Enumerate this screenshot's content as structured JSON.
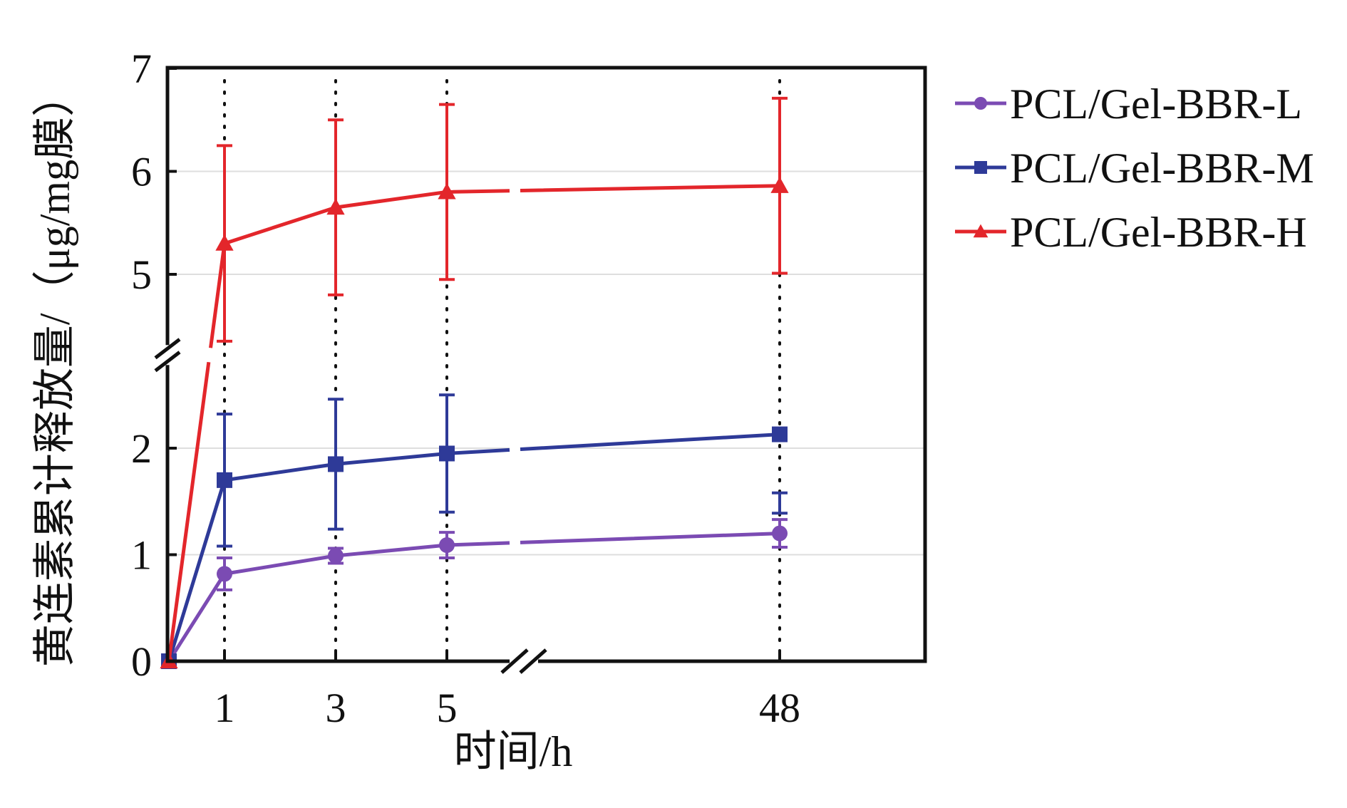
{
  "chart_data": {
    "type": "line",
    "title": "",
    "xlabel": "时间/h",
    "ylabel": "黄连素累计释放量/（μg/mg膜）",
    "x": [
      0,
      1,
      3,
      5,
      48
    ],
    "x_ticks": [
      "1",
      "3",
      "5",
      "48"
    ],
    "y_ticks": [
      "0",
      "1",
      "2",
      "5",
      "6",
      "7"
    ],
    "ylim": [
      0,
      7
    ],
    "y_axis_break": [
      2.5,
      4.5
    ],
    "x_axis_break": [
      5,
      48
    ],
    "grid": "horizontal",
    "legend_position": "right",
    "series": [
      {
        "name": "PCL/Gel-BBR-L",
        "color": "#7b4bb3",
        "marker": "circle",
        "values": [
          0,
          0.82,
          0.99,
          1.09,
          1.2
        ],
        "errors": [
          0,
          0.15,
          0.07,
          0.12,
          0.13
        ]
      },
      {
        "name": "PCL/Gel-BBR-M",
        "color": "#2e3a98",
        "marker": "square",
        "values": [
          0,
          1.7,
          1.85,
          1.95,
          2.13
        ],
        "errors": [
          0,
          0.62,
          0.61,
          0.55,
          0.55
        ]
      },
      {
        "name": "PCL/Gel-BBR-H",
        "color": "#e3262b",
        "marker": "triangle",
        "values": [
          0,
          5.3,
          5.65,
          5.8,
          5.86
        ],
        "errors": [
          0,
          0.95,
          0.85,
          0.85,
          0.85
        ]
      }
    ]
  }
}
